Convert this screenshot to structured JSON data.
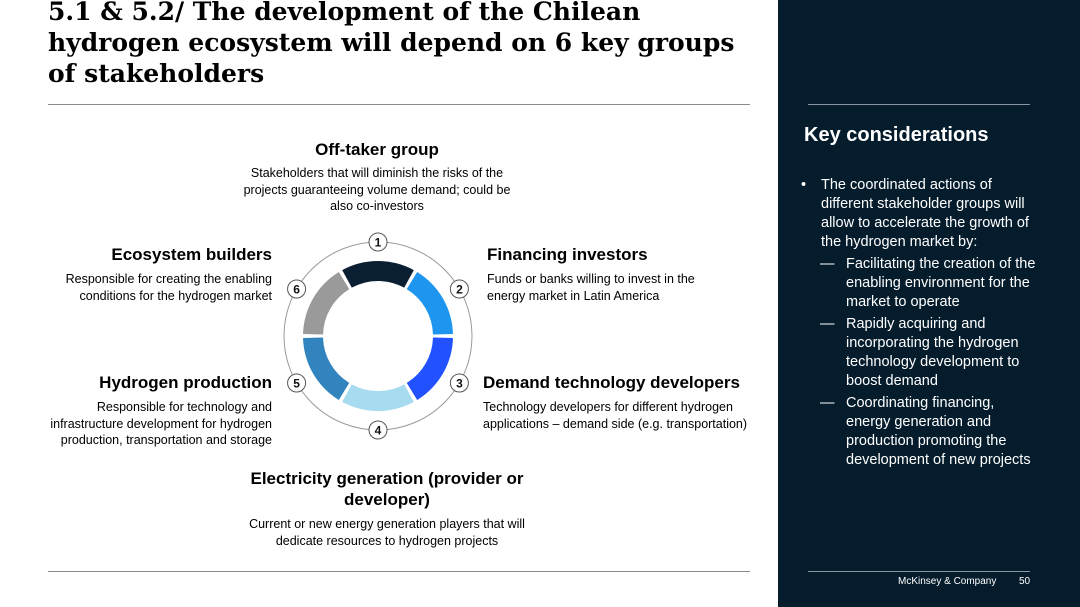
{
  "title": "5.1 & 5.2/ The development of the Chilean hydrogen ecosystem will depend on 6 key groups of stakeholders",
  "groups": {
    "offtaker": {
      "title": "Off-taker group",
      "desc": "Stakeholders that will diminish the risks of the projects guaranteeing volume demand; could be also co-investors"
    },
    "financing": {
      "title": "Financing investors",
      "desc": "Funds or banks willing to invest in the energy market in Latin America"
    },
    "demand": {
      "title": "Demand technology developers",
      "desc": "Technology developers for different hydrogen applications – demand side (e.g. transportation)"
    },
    "electricity": {
      "title": "Electricity generation (provider or developer)",
      "desc": "Current or new energy generation players that will dedicate resources to hydrogen projects"
    },
    "production": {
      "title": "Hydrogen production",
      "desc": "Responsible for technology and infrastructure development for hydrogen production, transportation and storage"
    },
    "ecosystem": {
      "title": "Ecosystem builders",
      "desc": "Responsible for creating the enabling conditions for the hydrogen market"
    }
  },
  "cycle": {
    "labels": [
      "1",
      "2",
      "3",
      "4",
      "5",
      "6"
    ],
    "colors": [
      "#0b1f33",
      "#1e96f0",
      "#2251ff",
      "#a6dbf0",
      "#3284bf",
      "#9a9a9a"
    ]
  },
  "key_considerations": {
    "title": "Key considerations",
    "main": "The coordinated actions of different stakeholder groups will allow to accelerate the growth of the hydrogen market by:",
    "sub": [
      "Facilitating the creation of the enabling environment for the market to operate",
      "Rapidly acquiring and incorporating the hydrogen technology development to boost demand",
      "Coordinating financing, energy generation and production promoting the development of new projects"
    ]
  },
  "footer": {
    "brand": "McKinsey & Company",
    "page": "50"
  }
}
